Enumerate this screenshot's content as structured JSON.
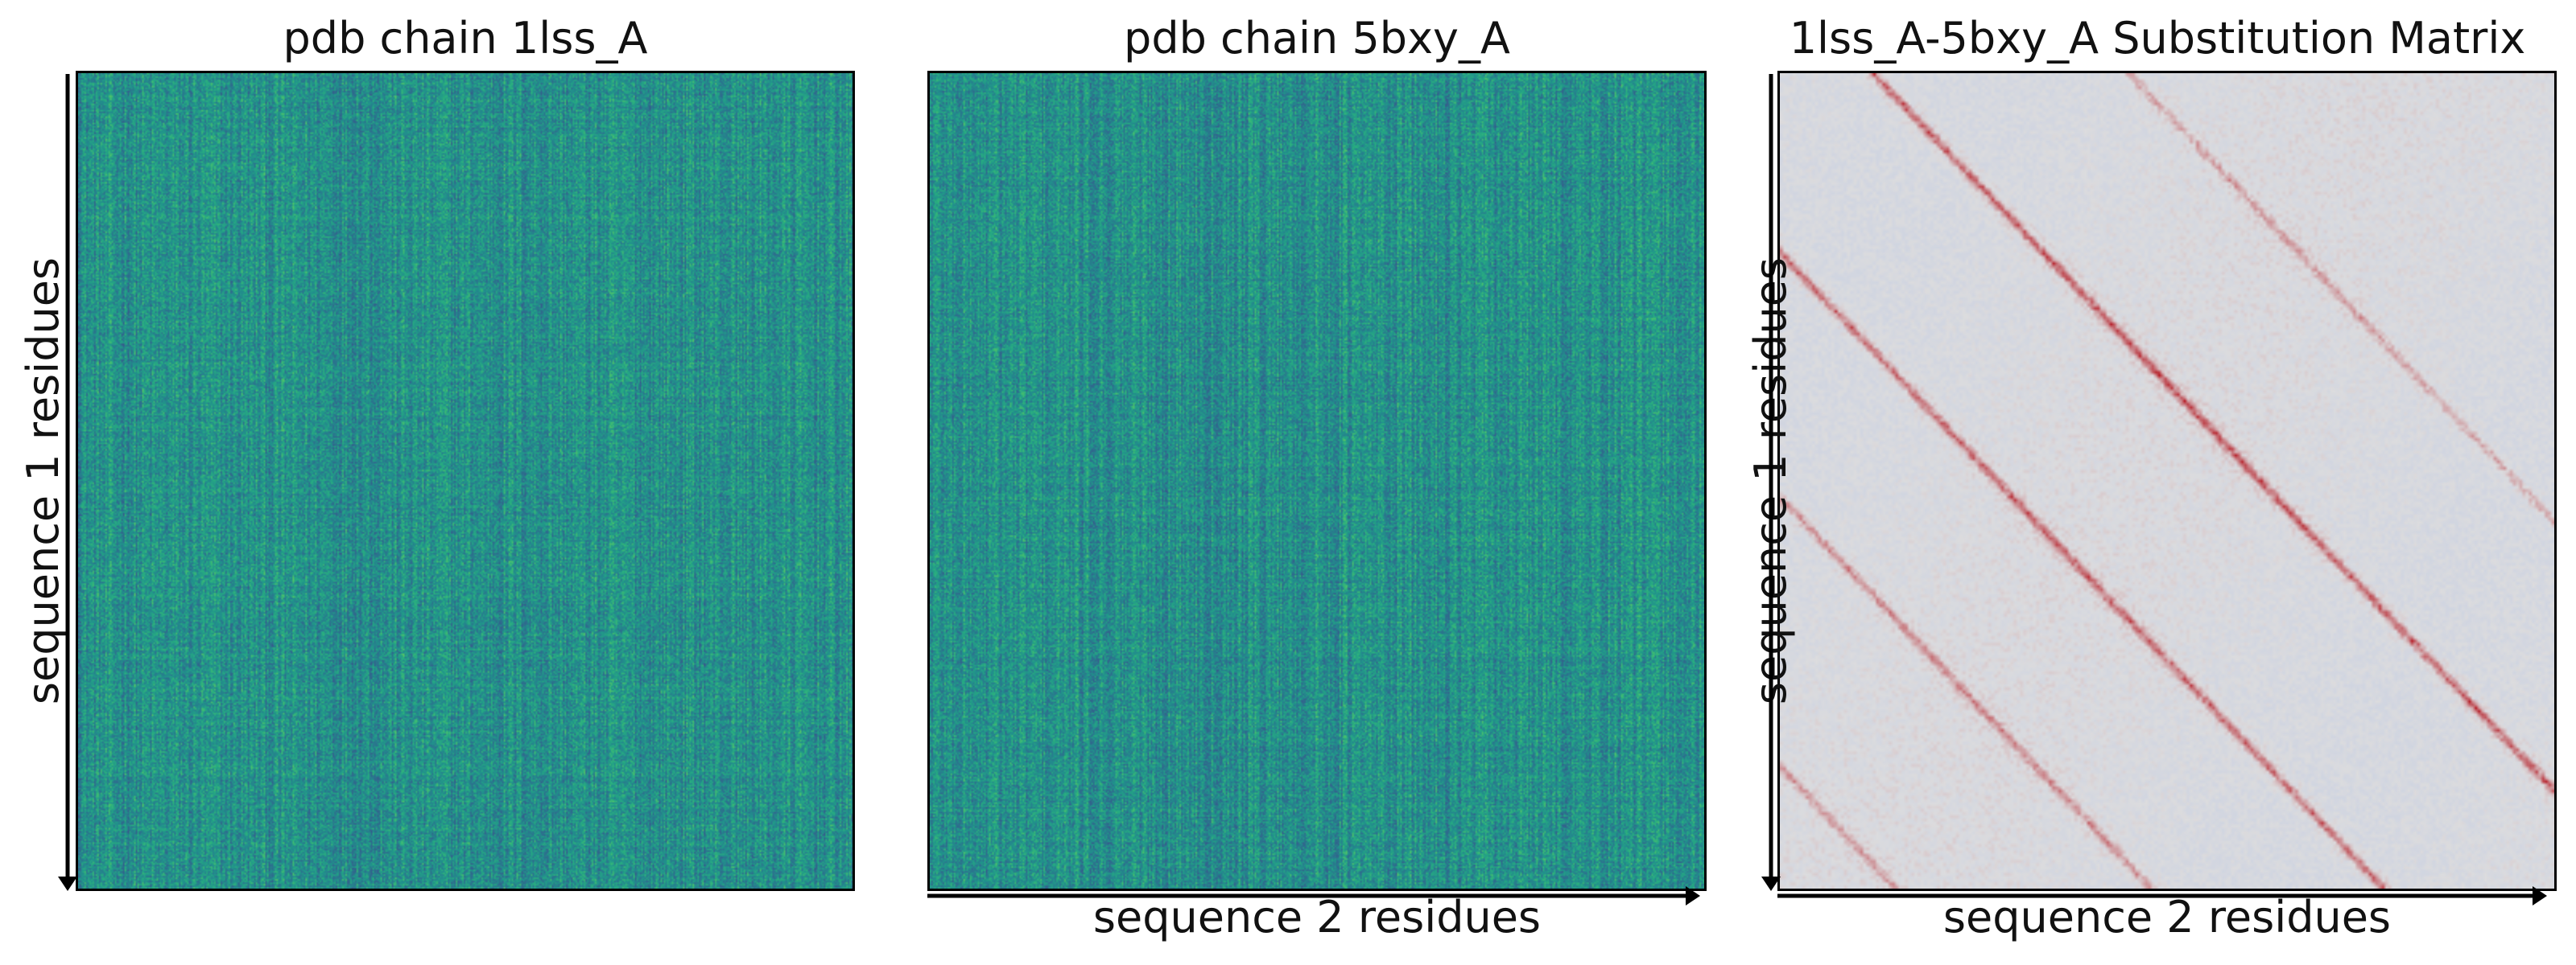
{
  "figure": {
    "panels": [
      {
        "title": "pdb chain 1lss_A",
        "ylabel": "sequence 1 residues",
        "xlabel": ""
      },
      {
        "title": "pdb chain 5bxy_A",
        "ylabel": "",
        "xlabel": "sequence 2 residues"
      },
      {
        "title": "1lss_A-5bxy_A Substitution Matrix",
        "ylabel": "sequence 1 residues",
        "xlabel": "sequence 2 residues"
      }
    ]
  },
  "chart_data": [
    {
      "type": "heatmap",
      "title": "pdb chain 1lss_A",
      "ylabel": "sequence 1 residues",
      "xlabel": "",
      "colormap": "viridis",
      "grid": false,
      "axis_ticks": false,
      "description_values": "dense per-residue embedding values, mostly mid-range teal"
    },
    {
      "type": "heatmap",
      "title": "pdb chain 5bxy_A",
      "ylabel": "",
      "xlabel": "sequence 2 residues",
      "colormap": "viridis",
      "grid": false,
      "axis_ticks": false,
      "description_values": "dense per-residue embedding values, mostly mid-range teal"
    },
    {
      "type": "heatmap",
      "title": "1lss_A-5bxy_A Substitution Matrix",
      "ylabel": "sequence 1 residues",
      "xlabel": "sequence 2 residues",
      "colormap": "coolwarm",
      "grid": false,
      "axis_ticks": false,
      "diagonal_bands": [
        {
          "offset": -0.12,
          "strength": 0.9
        },
        {
          "offset": 0.22,
          "strength": 0.8
        },
        {
          "offset": 0.52,
          "strength": 0.6
        },
        {
          "offset": 0.85,
          "strength": 0.5
        },
        {
          "offset": -0.45,
          "strength": 0.45
        },
        {
          "offset": 1.05,
          "strength": 0.35
        }
      ]
    }
  ],
  "colors": {
    "viridis_mid": "#2a8a8a",
    "coolwarm_neutral": "#dcdcdc",
    "coolwarm_hot": "#c0392b",
    "coolwarm_cold": "#b8c8e8"
  }
}
